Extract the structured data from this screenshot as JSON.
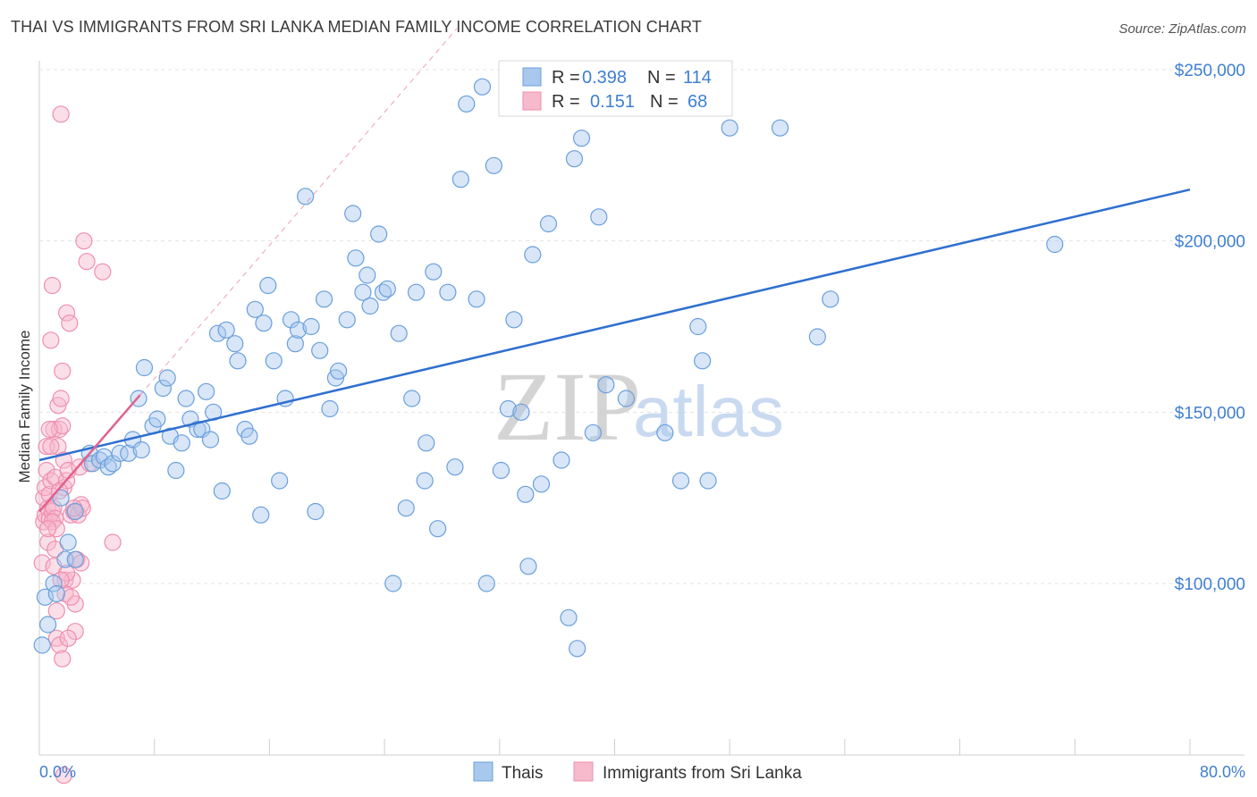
{
  "header": {
    "title": "THAI VS IMMIGRANTS FROM SRI LANKA MEDIAN FAMILY INCOME CORRELATION CHART",
    "source": "Source: ZipAtlas.com"
  },
  "watermark": {
    "zip": "ZIP",
    "atlas": "atlas"
  },
  "legend_top": [
    {
      "r_label": "R =",
      "r_value": "0.398",
      "n_label": "N =",
      "n_value": "114"
    },
    {
      "r_label": "R =",
      "r_value": "0.151",
      "n_label": "N =",
      "n_value": "68"
    }
  ],
  "legend_bottom": [
    "Thais",
    "Immigrants from Sri Lanka"
  ],
  "axis": {
    "ylabel": "Median Family Income",
    "y_ticks": [
      "$100,000",
      "$150,000",
      "$200,000",
      "$250,000"
    ],
    "x_min_label": "0.0%",
    "x_max_label": "80.0%"
  },
  "colors": {
    "blue_fill": "#a9c8ee",
    "blue_stroke": "#6a9fdc",
    "blue_line": "#2f6fd0",
    "pink_fill": "#f7b9cc",
    "pink_stroke": "#ee8fae",
    "pink_line": "#e0628e",
    "axis_text": "#3f7fd0",
    "grid": "#e3e3e3"
  },
  "chart_data": {
    "type": "scatter",
    "xlabel": "",
    "ylabel": "Median Family Income",
    "xlim": [
      0,
      80
    ],
    "ylim": [
      40000,
      260000
    ],
    "grid": true,
    "series": [
      {
        "name": "Thais",
        "trend": {
          "x": [
            0,
            80
          ],
          "y": [
            136000,
            215000
          ]
        },
        "points": [
          [
            0.2,
            82000
          ],
          [
            0.4,
            96000
          ],
          [
            0.6,
            88000
          ],
          [
            1.0,
            100000
          ],
          [
            1.2,
            97000
          ],
          [
            1.5,
            125000
          ],
          [
            1.8,
            107000
          ],
          [
            2.0,
            112000
          ],
          [
            2.5,
            107000
          ],
          [
            2.5,
            121000
          ],
          [
            3.5,
            138000
          ],
          [
            3.7,
            135000
          ],
          [
            4.2,
            136000
          ],
          [
            4.5,
            137000
          ],
          [
            4.8,
            134000
          ],
          [
            5.1,
            135000
          ],
          [
            5.6,
            138000
          ],
          [
            6.2,
            138000
          ],
          [
            6.5,
            142000
          ],
          [
            6.9,
            154000
          ],
          [
            7.1,
            139000
          ],
          [
            7.3,
            163000
          ],
          [
            7.9,
            146000
          ],
          [
            8.2,
            148000
          ],
          [
            8.6,
            157000
          ],
          [
            8.9,
            160000
          ],
          [
            9.1,
            143000
          ],
          [
            9.5,
            133000
          ],
          [
            9.9,
            141000
          ],
          [
            10.2,
            154000
          ],
          [
            10.5,
            148000
          ],
          [
            11.0,
            145000
          ],
          [
            11.3,
            145000
          ],
          [
            11.6,
            156000
          ],
          [
            11.9,
            142000
          ],
          [
            12.1,
            150000
          ],
          [
            12.4,
            173000
          ],
          [
            12.7,
            127000
          ],
          [
            13.0,
            174000
          ],
          [
            13.6,
            170000
          ],
          [
            13.8,
            165000
          ],
          [
            14.3,
            145000
          ],
          [
            14.6,
            143000
          ],
          [
            15.0,
            180000
          ],
          [
            15.4,
            120000
          ],
          [
            15.6,
            176000
          ],
          [
            15.9,
            187000
          ],
          [
            16.3,
            165000
          ],
          [
            16.7,
            130000
          ],
          [
            17.1,
            154000
          ],
          [
            17.5,
            177000
          ],
          [
            17.8,
            170000
          ],
          [
            18.0,
            174000
          ],
          [
            18.5,
            213000
          ],
          [
            18.9,
            175000
          ],
          [
            19.2,
            121000
          ],
          [
            19.5,
            168000
          ],
          [
            19.8,
            183000
          ],
          [
            20.2,
            151000
          ],
          [
            20.6,
            160000
          ],
          [
            20.8,
            162000
          ],
          [
            21.4,
            177000
          ],
          [
            21.8,
            208000
          ],
          [
            22.0,
            195000
          ],
          [
            22.5,
            185000
          ],
          [
            22.8,
            190000
          ],
          [
            23.0,
            181000
          ],
          [
            23.6,
            202000
          ],
          [
            23.9,
            185000
          ],
          [
            24.2,
            186000
          ],
          [
            24.6,
            100000
          ],
          [
            25.0,
            173000
          ],
          [
            25.5,
            122000
          ],
          [
            25.9,
            154000
          ],
          [
            26.2,
            185000
          ],
          [
            26.8,
            130000
          ],
          [
            26.9,
            141000
          ],
          [
            27.4,
            191000
          ],
          [
            27.7,
            116000
          ],
          [
            28.4,
            185000
          ],
          [
            28.9,
            134000
          ],
          [
            29.3,
            218000
          ],
          [
            29.7,
            240000
          ],
          [
            30.4,
            183000
          ],
          [
            30.8,
            245000
          ],
          [
            31.1,
            100000
          ],
          [
            31.6,
            222000
          ],
          [
            32.1,
            133000
          ],
          [
            32.6,
            151000
          ],
          [
            33.0,
            177000
          ],
          [
            33.5,
            150000
          ],
          [
            33.8,
            126000
          ],
          [
            34.0,
            105000
          ],
          [
            34.3,
            196000
          ],
          [
            34.9,
            129000
          ],
          [
            35.4,
            205000
          ],
          [
            36.3,
            136000
          ],
          [
            36.8,
            90000
          ],
          [
            37.2,
            224000
          ],
          [
            37.4,
            81000
          ],
          [
            37.7,
            230000
          ],
          [
            38.5,
            144000
          ],
          [
            38.9,
            207000
          ],
          [
            39.4,
            158000
          ],
          [
            40.8,
            154000
          ],
          [
            43.5,
            144000
          ],
          [
            44.6,
            130000
          ],
          [
            45.8,
            175000
          ],
          [
            46.1,
            165000
          ],
          [
            46.5,
            130000
          ],
          [
            48.0,
            233000
          ],
          [
            51.5,
            233000
          ],
          [
            54.1,
            172000
          ],
          [
            55.0,
            183000
          ],
          [
            70.6,
            199000
          ]
        ]
      },
      {
        "name": "Immigrants from Sri Lanka",
        "trend": {
          "x": [
            0,
            7
          ],
          "y": [
            121000,
            155000
          ]
        },
        "points": [
          [
            0.2,
            106000
          ],
          [
            0.3,
            118000
          ],
          [
            0.3,
            125000
          ],
          [
            0.4,
            120000
          ],
          [
            0.4,
            128000
          ],
          [
            0.5,
            133000
          ],
          [
            0.5,
            140000
          ],
          [
            0.6,
            122000
          ],
          [
            0.6,
            112000
          ],
          [
            0.7,
            119000
          ],
          [
            0.7,
            126000
          ],
          [
            0.8,
            130000
          ],
          [
            0.8,
            171000
          ],
          [
            0.9,
            187000
          ],
          [
            0.9,
            121000
          ],
          [
            1.0,
            122000
          ],
          [
            1.0,
            145000
          ],
          [
            1.1,
            119000
          ],
          [
            1.1,
            131000
          ],
          [
            1.2,
            92000
          ],
          [
            1.2,
            84000
          ],
          [
            1.3,
            140000
          ],
          [
            1.3,
            152000
          ],
          [
            1.4,
            145000
          ],
          [
            1.5,
            237000
          ],
          [
            1.5,
            154000
          ],
          [
            1.6,
            162000
          ],
          [
            1.6,
            146000
          ],
          [
            1.7,
            128000
          ],
          [
            1.7,
            136000
          ],
          [
            1.8,
            101000
          ],
          [
            1.8,
            97000
          ],
          [
            1.9,
            179000
          ],
          [
            1.9,
            130000
          ],
          [
            2.0,
            133000
          ],
          [
            2.1,
            176000
          ],
          [
            2.2,
            120000
          ],
          [
            2.3,
            101000
          ],
          [
            2.4,
            121000
          ],
          [
            2.5,
            86000
          ],
          [
            2.5,
            94000
          ],
          [
            2.6,
            107000
          ],
          [
            2.7,
            120000
          ],
          [
            2.8,
            134000
          ],
          [
            2.9,
            106000
          ],
          [
            2.9,
            123000
          ],
          [
            3.0,
            122000
          ],
          [
            3.1,
            200000
          ],
          [
            3.3,
            194000
          ],
          [
            3.5,
            135000
          ],
          [
            4.4,
            191000
          ],
          [
            5.1,
            112000
          ],
          [
            1.0,
            105000
          ],
          [
            1.4,
            82000
          ],
          [
            1.6,
            78000
          ],
          [
            1.7,
            44000
          ],
          [
            1.4,
            127000
          ],
          [
            0.9,
            118000
          ],
          [
            1.2,
            116000
          ],
          [
            1.9,
            103000
          ],
          [
            2.2,
            96000
          ],
          [
            0.6,
            116000
          ],
          [
            1.5,
            101000
          ],
          [
            2.0,
            84000
          ],
          [
            0.8,
            140000
          ],
          [
            2.4,
            122000
          ],
          [
            1.1,
            110000
          ],
          [
            0.7,
            145000
          ]
        ]
      }
    ]
  }
}
